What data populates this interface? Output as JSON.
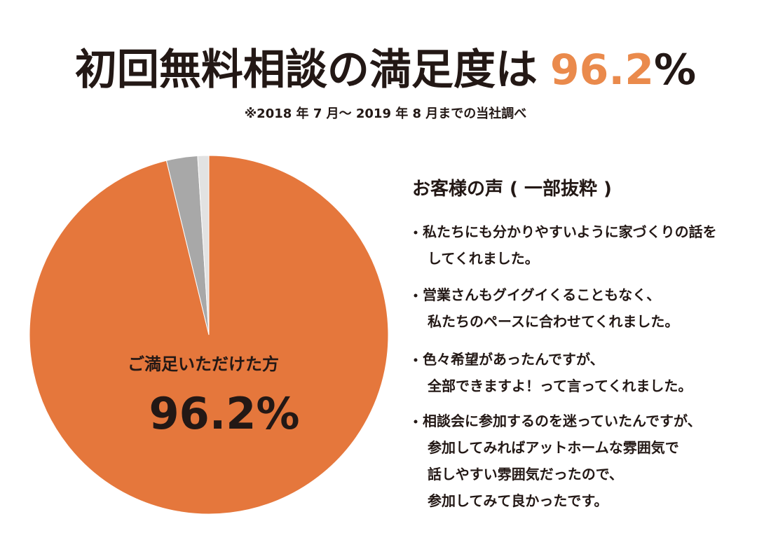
{
  "chart_data": {
    "type": "pie",
    "title": "初回無料相談の満足度は",
    "title_highlight": "96.2",
    "title_unit": "%",
    "title_highlight_color": "#ea8a4c",
    "subtitle": "※2018 年 7 月～ 2019 年 8 月までの当社調べ",
    "categories": [
      "ご満足いただけた方",
      null,
      null
    ],
    "values": [
      96.2,
      2.8,
      1.0
    ],
    "value_labels": [
      "96.2%",
      null,
      null
    ],
    "colors": [
      "#e5773c",
      "#a8a8a8",
      "#e2e2e2"
    ],
    "voices": {
      "heading": "お客様の声 ( 一部抜粋 )",
      "comments": [
        [
          "私たちにも分かりやすいように家づくりの話を",
          "してくれました。"
        ],
        [
          "営業さんもグイグイくることもなく、",
          "私たちのペースに合わせてくれました。"
        ],
        [
          "色々希望があったんですが、",
          "全部できますよ！って言ってくれました。"
        ],
        [
          "相談会に参加するのを迷っていたんですが、",
          "参加してみればアットホームな雰囲気で",
          "話しやすい雰囲気だったので、",
          "参加してみて良かったです。"
        ]
      ]
    }
  }
}
